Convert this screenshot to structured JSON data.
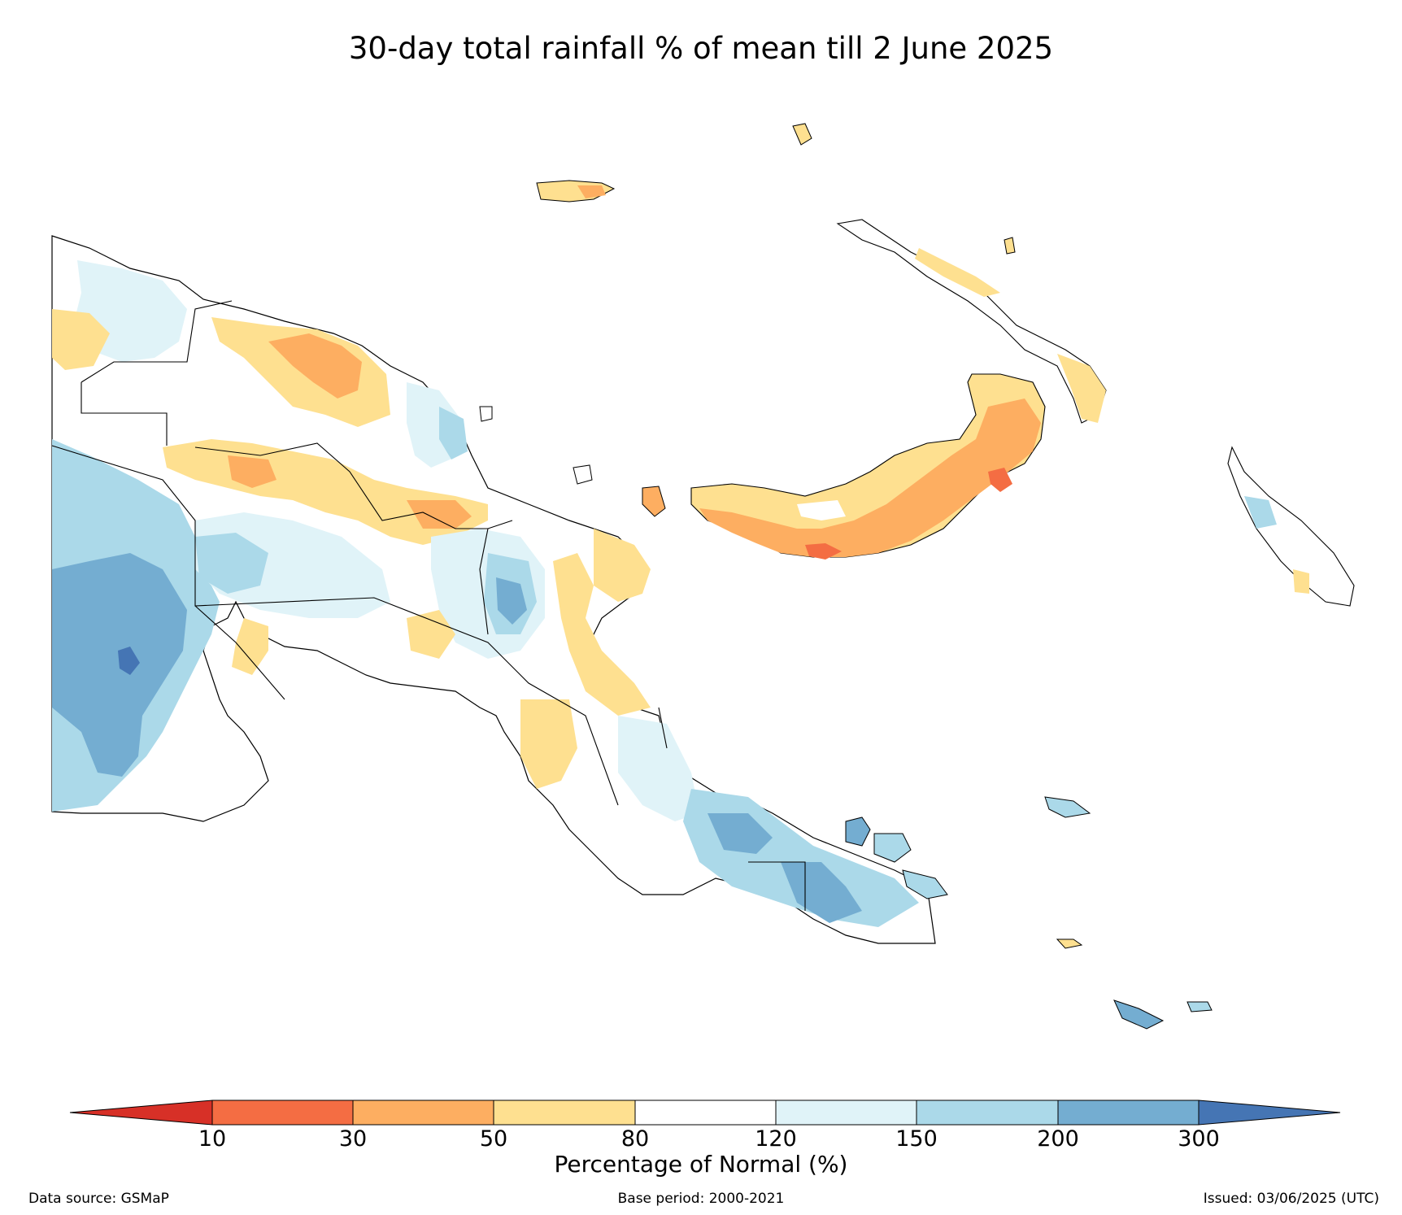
{
  "title": "30-day total rainfall % of mean till 2 June 2025",
  "colorbar": {
    "title": "Percentage of Normal (%)",
    "ticks": [
      "10",
      "30",
      "50",
      "80",
      "120",
      "150",
      "200",
      "300"
    ],
    "extend_low_color": "#d73027",
    "colors": [
      "#f46d43",
      "#fdae61",
      "#fee090",
      "#ffffff",
      "#e0f3f8",
      "#abd9e9",
      "#74add1"
    ],
    "extend_high_color": "#4575b4"
  },
  "footer": {
    "source": "Data source: GSMaP",
    "base_period": "Base period: 2000-2021",
    "issued": "Issued: 03/06/2025 (UTC)"
  }
}
